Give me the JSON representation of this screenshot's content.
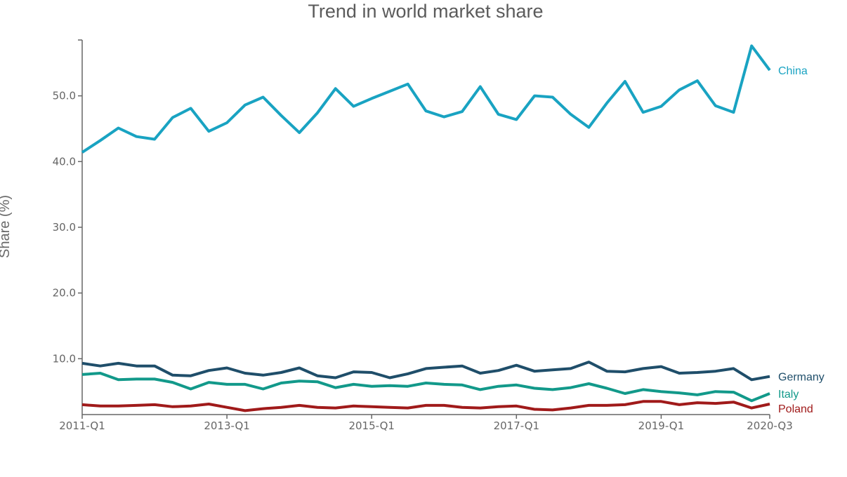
{
  "chart_data": {
    "type": "line",
    "title": "Trend in world market share",
    "xlabel": "",
    "ylabel": "Share (%)",
    "x": [
      "2011-Q1",
      "2011-Q2",
      "2011-Q3",
      "2011-Q4",
      "2012-Q1",
      "2012-Q2",
      "2012-Q3",
      "2012-Q4",
      "2013-Q1",
      "2013-Q2",
      "2013-Q3",
      "2013-Q4",
      "2014-Q1",
      "2014-Q2",
      "2014-Q3",
      "2014-Q4",
      "2015-Q1",
      "2015-Q2",
      "2015-Q3",
      "2015-Q4",
      "2016-Q1",
      "2016-Q2",
      "2016-Q3",
      "2016-Q4",
      "2017-Q1",
      "2017-Q2",
      "2017-Q3",
      "2017-Q4",
      "2018-Q1",
      "2018-Q2",
      "2018-Q3",
      "2018-Q4",
      "2019-Q1",
      "2019-Q2",
      "2019-Q3",
      "2019-Q4",
      "2020-Q1",
      "2020-Q2",
      "2020-Q3"
    ],
    "x_tick_labels": [
      "2011-Q1",
      "2013-Q1",
      "2015-Q1",
      "2017-Q1",
      "2019-Q1",
      "2020-Q3"
    ],
    "y_tick_labels": [
      "10.0",
      "20.0",
      "30.0",
      "40.0",
      "50.0"
    ],
    "y_ticks": [
      10,
      20,
      30,
      40,
      50
    ],
    "ylim": [
      1.5,
      58.5
    ],
    "grid": false,
    "legend": "inline labels at line ends",
    "series": [
      {
        "name": "China",
        "color": "#19a3c2",
        "values": [
          41.4,
          43.2,
          45.1,
          43.8,
          43.4,
          46.7,
          48.1,
          44.6,
          45.9,
          48.6,
          49.8,
          47.0,
          44.4,
          47.4,
          51.1,
          48.4,
          49.6,
          50.7,
          51.8,
          47.7,
          46.8,
          47.6,
          51.4,
          47.2,
          46.4,
          50.0,
          49.8,
          47.2,
          45.2,
          48.9,
          52.2,
          47.5,
          48.4,
          50.9,
          52.3,
          48.5,
          47.5,
          57.6,
          53.9
        ]
      },
      {
        "name": "Germany",
        "color": "#1f4e6a",
        "values": [
          9.3,
          8.9,
          9.3,
          8.9,
          8.9,
          7.5,
          7.4,
          8.2,
          8.6,
          7.8,
          7.5,
          7.9,
          8.6,
          7.4,
          7.1,
          8.0,
          7.9,
          7.1,
          7.7,
          8.5,
          8.7,
          8.9,
          7.8,
          8.2,
          9.0,
          8.1,
          8.3,
          8.5,
          9.5,
          8.1,
          8.0,
          8.5,
          8.8,
          7.8,
          7.9,
          8.1,
          8.5,
          6.8,
          7.3
        ]
      },
      {
        "name": "Italy",
        "color": "#12998a",
        "values": [
          7.6,
          7.8,
          6.8,
          6.9,
          6.9,
          6.4,
          5.4,
          6.4,
          6.1,
          6.1,
          5.4,
          6.3,
          6.6,
          6.5,
          5.6,
          6.1,
          5.8,
          5.9,
          5.8,
          6.3,
          6.1,
          6.0,
          5.3,
          5.8,
          6.0,
          5.5,
          5.3,
          5.6,
          6.2,
          5.5,
          4.7,
          5.3,
          5.0,
          4.8,
          4.5,
          5.0,
          4.9,
          3.6,
          4.7
        ]
      },
      {
        "name": "Poland",
        "color": "#a01a1a",
        "values": [
          3.0,
          2.8,
          2.8,
          2.9,
          3.0,
          2.7,
          2.8,
          3.1,
          2.6,
          2.1,
          2.4,
          2.6,
          2.9,
          2.6,
          2.5,
          2.8,
          2.7,
          2.6,
          2.5,
          2.9,
          2.9,
          2.6,
          2.5,
          2.7,
          2.8,
          2.3,
          2.2,
          2.5,
          2.9,
          2.9,
          3.0,
          3.5,
          3.5,
          3.0,
          3.3,
          3.2,
          3.4,
          2.5,
          3.1
        ]
      }
    ]
  }
}
